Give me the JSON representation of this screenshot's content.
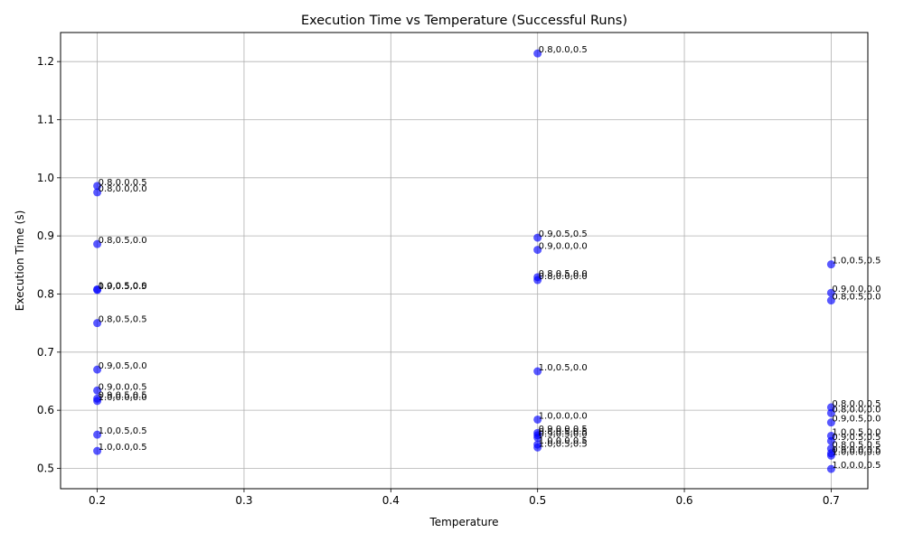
{
  "chart_data": {
    "type": "scatter",
    "title": "Execution Time vs Temperature (Successful Runs)",
    "xlabel": "Temperature",
    "ylabel": "Execution Time (s)",
    "xlim": [
      0.175,
      0.725
    ],
    "ylim": [
      0.465,
      1.25
    ],
    "xticks": [
      "0.2",
      "0.3",
      "0.4",
      "0.5",
      "0.6",
      "0.7"
    ],
    "yticks": [
      "0.5",
      "0.6",
      "0.7",
      "0.8",
      "0.9",
      "1.0",
      "1.1",
      "1.2"
    ],
    "grid": true,
    "marker_color": "#0000ff",
    "points": [
      {
        "x": 0.2,
        "y": 0.986,
        "label": "0.8,0.0,0.5"
      },
      {
        "x": 0.2,
        "y": 0.975,
        "label": "0.8,0.0,0.0"
      },
      {
        "x": 0.2,
        "y": 0.886,
        "label": "0.8,0.5,0.0"
      },
      {
        "x": 0.2,
        "y": 0.808,
        "label": "1.0,0.5,0.0"
      },
      {
        "x": 0.2,
        "y": 0.807,
        "label": "0.9,0.5,0.5"
      },
      {
        "x": 0.2,
        "y": 0.75,
        "label": "0.8,0.5,0.5"
      },
      {
        "x": 0.2,
        "y": 0.67,
        "label": "0.9,0.5,0.0"
      },
      {
        "x": 0.2,
        "y": 0.634,
        "label": "0.9,0.0,0.5"
      },
      {
        "x": 0.2,
        "y": 0.62,
        "label": "0.9,0.5,0.5"
      },
      {
        "x": 0.2,
        "y": 0.616,
        "label": "1.0,0.0,0.0"
      },
      {
        "x": 0.2,
        "y": 0.558,
        "label": "1.0,0.5,0.5"
      },
      {
        "x": 0.2,
        "y": 0.53,
        "label": "1.0,0.0,0.5"
      },
      {
        "x": 0.5,
        "y": 1.214,
        "label": "0.8,0.0,0.5"
      },
      {
        "x": 0.5,
        "y": 0.897,
        "label": "0.9,0.5,0.5"
      },
      {
        "x": 0.5,
        "y": 0.876,
        "label": "0.9,0.0,0.0"
      },
      {
        "x": 0.5,
        "y": 0.829,
        "label": "0.8,0.5,0.0"
      },
      {
        "x": 0.5,
        "y": 0.824,
        "label": "0.8,0.0,0.0"
      },
      {
        "x": 0.5,
        "y": 0.667,
        "label": "1.0,0.5,0.0"
      },
      {
        "x": 0.5,
        "y": 0.584,
        "label": "1.0,0.0,0.0"
      },
      {
        "x": 0.5,
        "y": 0.561,
        "label": "0.9,0.0,0.5"
      },
      {
        "x": 0.5,
        "y": 0.557,
        "label": "0.8,0.5,0.5"
      },
      {
        "x": 0.5,
        "y": 0.553,
        "label": "0.9,0.5,0.0"
      },
      {
        "x": 0.5,
        "y": 0.541,
        "label": "1.0,0.0,0.5"
      },
      {
        "x": 0.5,
        "y": 0.536,
        "label": "1.0,0.5,0.5"
      },
      {
        "x": 0.7,
        "y": 0.851,
        "label": "1.0,0.5,0.5"
      },
      {
        "x": 0.7,
        "y": 0.802,
        "label": "0.9,0.0,0.0"
      },
      {
        "x": 0.7,
        "y": 0.789,
        "label": "0.8,0.5,0.0"
      },
      {
        "x": 0.7,
        "y": 0.605,
        "label": "0.8,0.0,0.5"
      },
      {
        "x": 0.7,
        "y": 0.595,
        "label": "0.8,0.0,0.0"
      },
      {
        "x": 0.7,
        "y": 0.579,
        "label": "0.9,0.5,0.0"
      },
      {
        "x": 0.7,
        "y": 0.556,
        "label": "1.0,0.5,0.0"
      },
      {
        "x": 0.7,
        "y": 0.547,
        "label": "0.9,0.5,0.5"
      },
      {
        "x": 0.7,
        "y": 0.534,
        "label": "0.8,0.5,0.5"
      },
      {
        "x": 0.7,
        "y": 0.526,
        "label": "0.9,0.0,0.5"
      },
      {
        "x": 0.7,
        "y": 0.522,
        "label": "1.0,0.0,0.0"
      },
      {
        "x": 0.7,
        "y": 0.499,
        "label": "1.0,0.0,0.5"
      }
    ]
  }
}
